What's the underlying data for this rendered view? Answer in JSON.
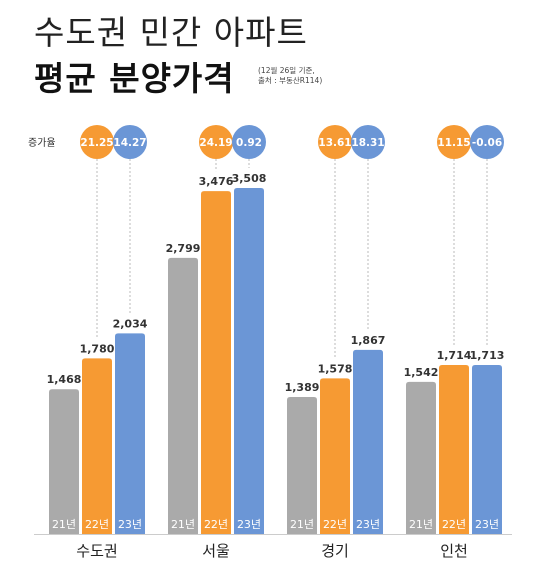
{
  "header": {
    "title_line1": "수도권 민간 아파트",
    "title_line2": "평균 분양가격",
    "note_line1": "(12월 26일 기준,",
    "note_line2": "출처 : 부동산R114)"
  },
  "chart_data": {
    "type": "bar",
    "unit": "",
    "growth_label": "증가율",
    "categories": [
      "수도권",
      "서울",
      "경기",
      "인천"
    ],
    "series": [
      {
        "name": "21년",
        "color": "#aaaaaa",
        "values": [
          1468,
          2799,
          1389,
          1542
        ]
      },
      {
        "name": "22년",
        "color": "#f69a33",
        "values": [
          1780,
          3476,
          1578,
          1714
        ]
      },
      {
        "name": "23년",
        "color": "#6b96d6",
        "values": [
          2034,
          3508,
          1867,
          1713
        ]
      }
    ],
    "value_labels": [
      [
        "1,468",
        "1,780",
        "2,034"
      ],
      [
        "2,799",
        "3,476",
        "3,508"
      ],
      [
        "1,389",
        "1,578",
        "1,867"
      ],
      [
        "1,542",
        "1,714",
        "1,713"
      ]
    ],
    "growth_rates": [
      {
        "y22": "21.25",
        "y23": "14.27"
      },
      {
        "y22": "24.19",
        "y23": "0.92"
      },
      {
        "y22": "13.61",
        "y23": "18.31"
      },
      {
        "y22": "11.15",
        "y23": "-0.06"
      }
    ],
    "growth_colors": {
      "y22": "#f69a33",
      "y23": "#6b96d6"
    },
    "ylim": [
      0,
      3508
    ],
    "grid": false,
    "legend": "none"
  }
}
